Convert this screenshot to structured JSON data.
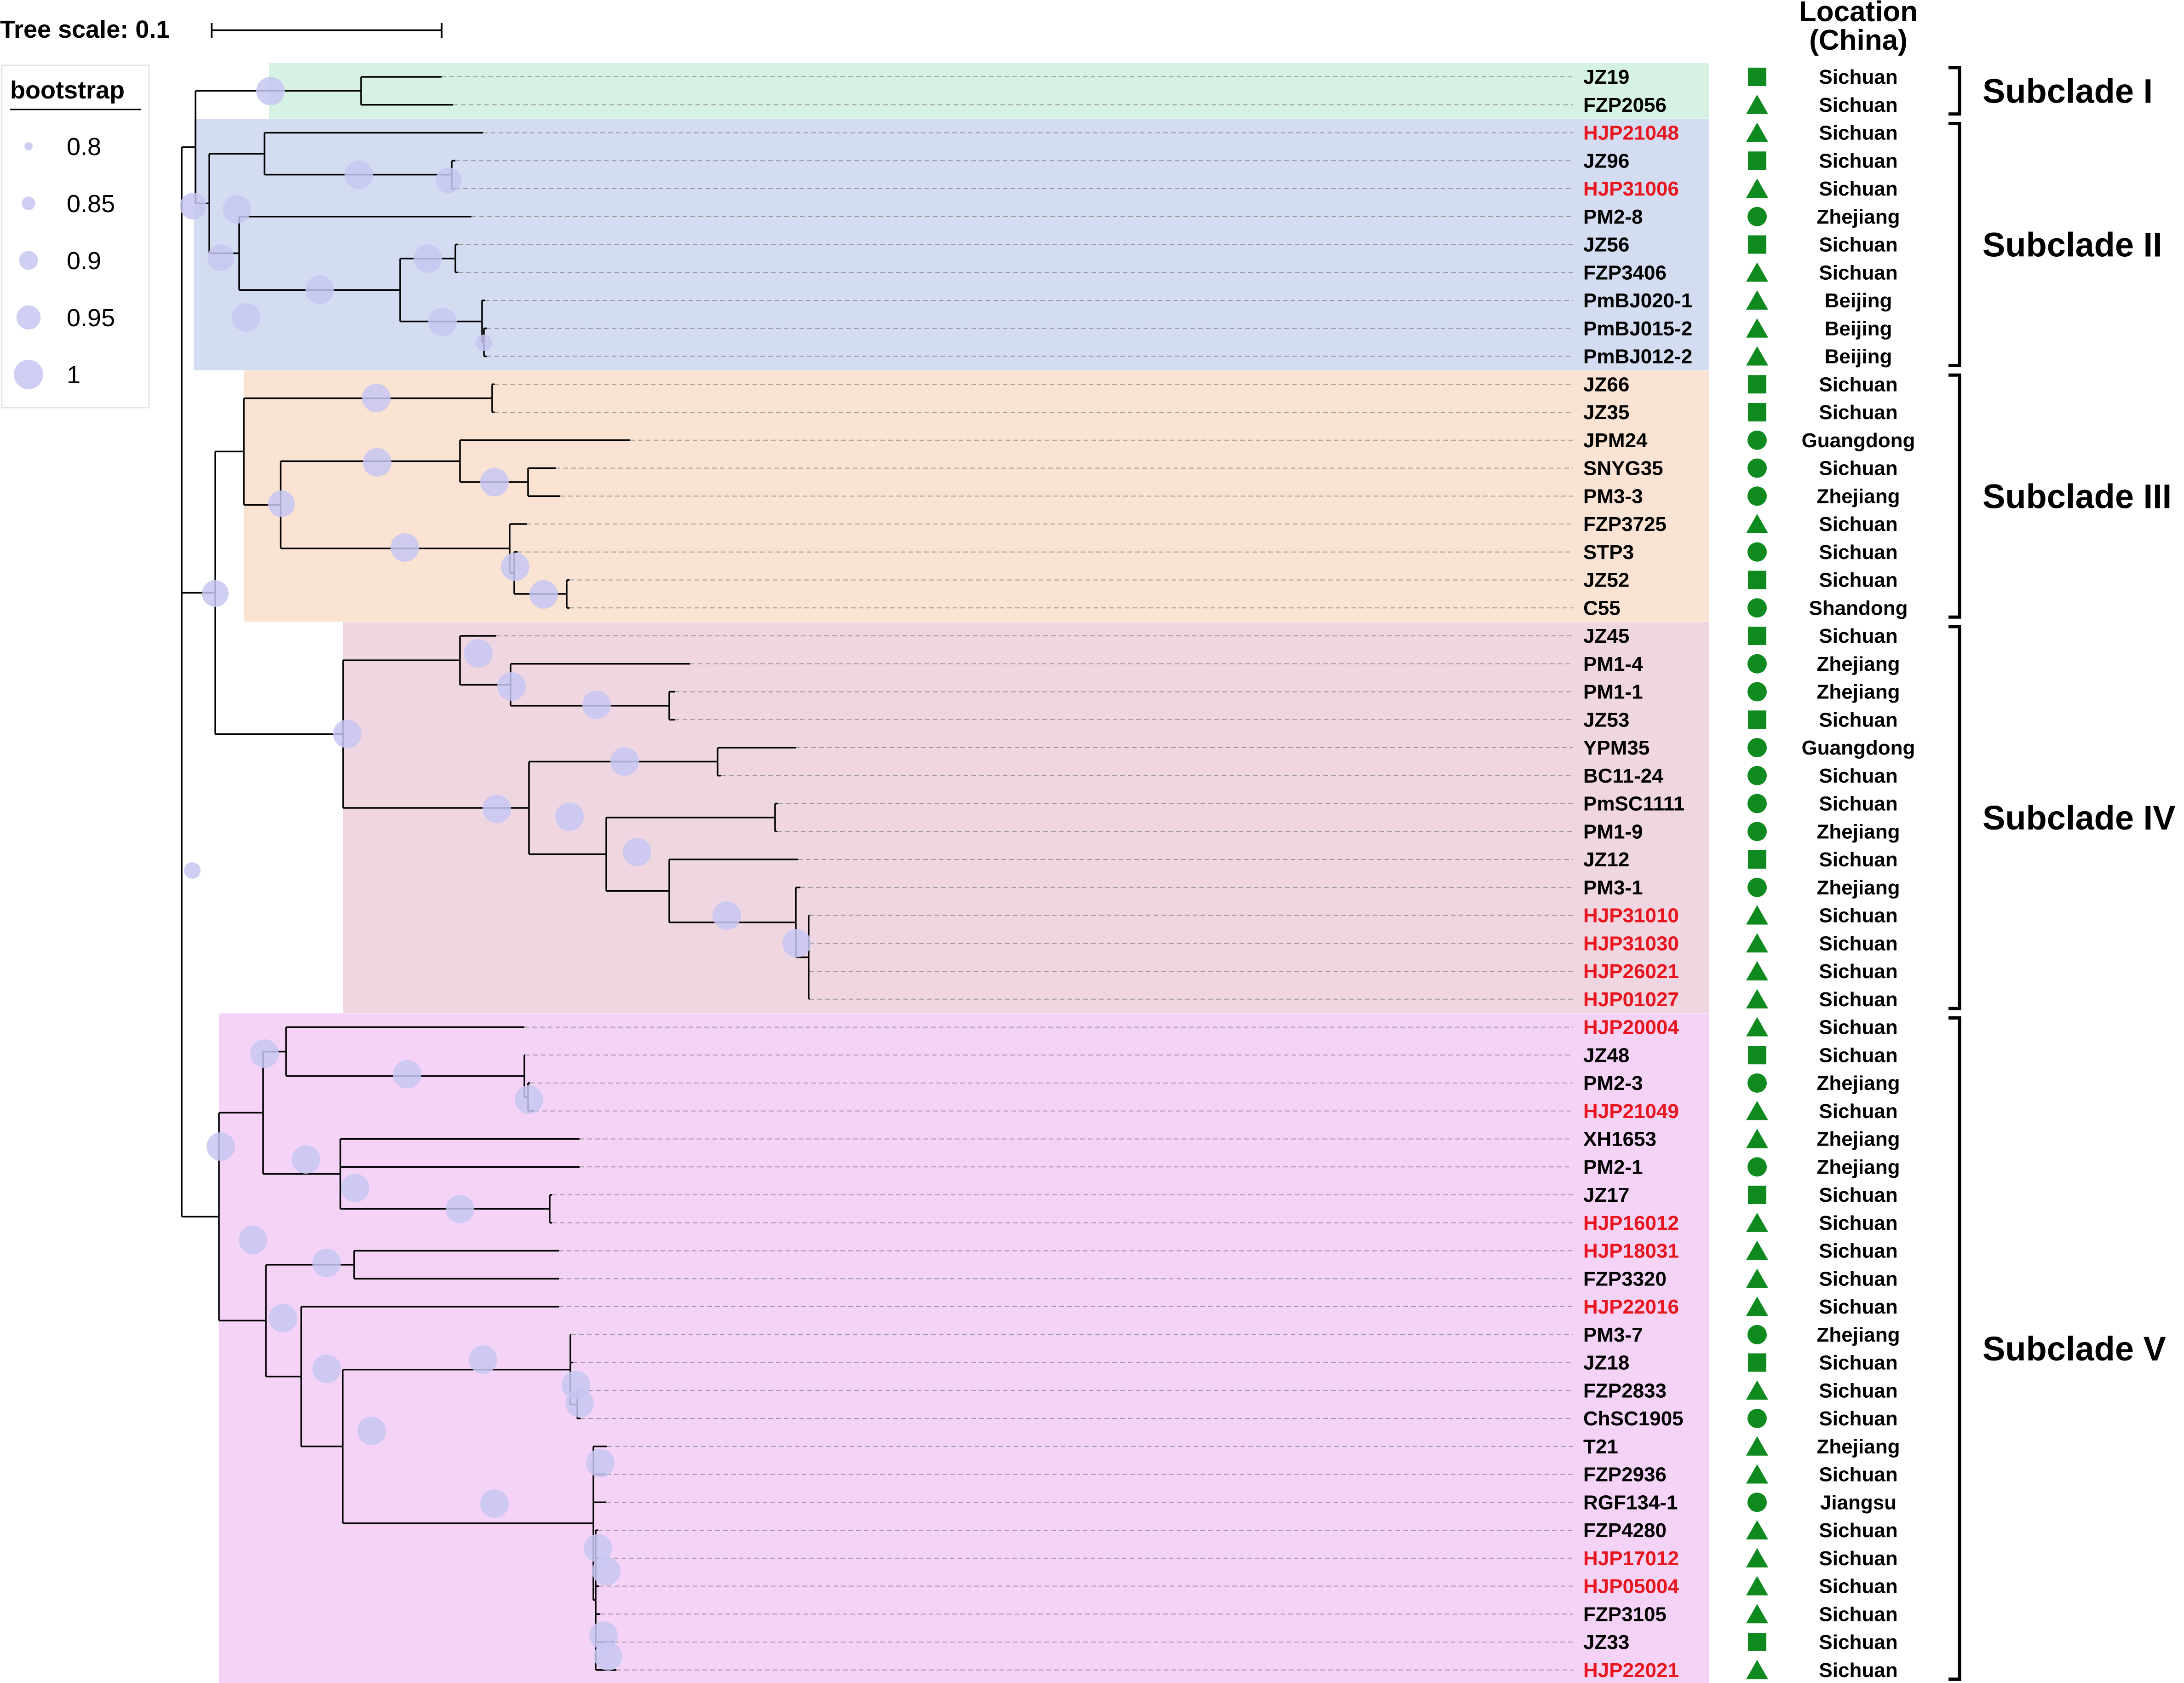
{
  "tree_scale": {
    "label": "Tree scale: 0.1"
  },
  "legend": {
    "title": "bootstrap",
    "entries": [
      {
        "label": "0.8",
        "value": 0.8
      },
      {
        "label": "0.85",
        "value": 0.85
      },
      {
        "label": "0.9",
        "value": 0.9
      },
      {
        "label": "0.95",
        "value": 0.95
      },
      {
        "label": "1",
        "value": 1.0
      }
    ]
  },
  "location_header": {
    "line1": "Location",
    "line2": "(China)"
  },
  "colors": {
    "highlight_label": "#e8141e",
    "normal_label": "#000000",
    "shape": "#0f8a1e",
    "bootstrap": "#c7c7f2",
    "subclades": [
      "#d6f2e3",
      "#d4dcf2",
      "#fbe3d4",
      "#efd6e1",
      "#f5d3f7"
    ]
  },
  "subclades": [
    {
      "label": "Subclade I",
      "from": 0,
      "to": 1
    },
    {
      "label": "Subclade II",
      "from": 2,
      "to": 10
    },
    {
      "label": "Subclade III",
      "from": 11,
      "to": 19
    },
    {
      "label": "Subclade IV",
      "from": 20,
      "to": 33
    },
    {
      "label": "Subclade V",
      "from": 34,
      "to": 57
    }
  ],
  "taxa": [
    {
      "name": "JZ19",
      "location": "Sichuan",
      "shape": "square",
      "highlight": false
    },
    {
      "name": "FZP2056",
      "location": "Sichuan",
      "shape": "triangle",
      "highlight": false
    },
    {
      "name": "HJP21048",
      "location": "Sichuan",
      "shape": "triangle",
      "highlight": true
    },
    {
      "name": "JZ96",
      "location": "Sichuan",
      "shape": "square",
      "highlight": false
    },
    {
      "name": "HJP31006",
      "location": "Sichuan",
      "shape": "triangle",
      "highlight": true
    },
    {
      "name": "PM2-8",
      "location": "Zhejiang",
      "shape": "circle",
      "highlight": false
    },
    {
      "name": "JZ56",
      "location": "Sichuan",
      "shape": "square",
      "highlight": false
    },
    {
      "name": "FZP3406",
      "location": "Sichuan",
      "shape": "triangle",
      "highlight": false
    },
    {
      "name": "PmBJ020-1",
      "location": "Beijing",
      "shape": "triangle",
      "highlight": false
    },
    {
      "name": "PmBJ015-2",
      "location": "Beijing",
      "shape": "triangle",
      "highlight": false
    },
    {
      "name": "PmBJ012-2",
      "location": "Beijing",
      "shape": "triangle",
      "highlight": false
    },
    {
      "name": "JZ66",
      "location": "Sichuan",
      "shape": "square",
      "highlight": false
    },
    {
      "name": "JZ35",
      "location": "Sichuan",
      "shape": "square",
      "highlight": false
    },
    {
      "name": "JPM24",
      "location": "Guangdong",
      "shape": "circle",
      "highlight": false
    },
    {
      "name": "SNYG35",
      "location": "Sichuan",
      "shape": "circle",
      "highlight": false
    },
    {
      "name": "PM3-3",
      "location": "Zhejiang",
      "shape": "circle",
      "highlight": false
    },
    {
      "name": "FZP3725",
      "location": "Sichuan",
      "shape": "triangle",
      "highlight": false
    },
    {
      "name": "STP3",
      "location": "Sichuan",
      "shape": "circle",
      "highlight": false
    },
    {
      "name": "JZ52",
      "location": "Sichuan",
      "shape": "square",
      "highlight": false
    },
    {
      "name": "C55",
      "location": "Shandong",
      "shape": "circle",
      "highlight": false
    },
    {
      "name": "JZ45",
      "location": "Sichuan",
      "shape": "square",
      "highlight": false
    },
    {
      "name": "PM1-4",
      "location": "Zhejiang",
      "shape": "circle",
      "highlight": false
    },
    {
      "name": "PM1-1",
      "location": "Zhejiang",
      "shape": "circle",
      "highlight": false
    },
    {
      "name": "JZ53",
      "location": "Sichuan",
      "shape": "square",
      "highlight": false
    },
    {
      "name": "YPM35",
      "location": "Guangdong",
      "shape": "circle",
      "highlight": false
    },
    {
      "name": "BC11-24",
      "location": "Sichuan",
      "shape": "circle",
      "highlight": false
    },
    {
      "name": "PmSC1111",
      "location": "Sichuan",
      "shape": "circle",
      "highlight": false
    },
    {
      "name": "PM1-9",
      "location": "Zhejiang",
      "shape": "circle",
      "highlight": false
    },
    {
      "name": "JZ12",
      "location": "Sichuan",
      "shape": "square",
      "highlight": false
    },
    {
      "name": "PM3-1",
      "location": "Zhejiang",
      "shape": "circle",
      "highlight": false
    },
    {
      "name": "HJP31010",
      "location": "Sichuan",
      "shape": "triangle",
      "highlight": true
    },
    {
      "name": "HJP31030",
      "location": "Sichuan",
      "shape": "triangle",
      "highlight": true
    },
    {
      "name": "HJP26021",
      "location": "Sichuan",
      "shape": "triangle",
      "highlight": true
    },
    {
      "name": "HJP01027",
      "location": "Sichuan",
      "shape": "triangle",
      "highlight": true
    },
    {
      "name": "HJP20004",
      "location": "Sichuan",
      "shape": "triangle",
      "highlight": true
    },
    {
      "name": "JZ48",
      "location": "Sichuan",
      "shape": "square",
      "highlight": false
    },
    {
      "name": "PM2-3",
      "location": "Zhejiang",
      "shape": "circle",
      "highlight": false
    },
    {
      "name": "HJP21049",
      "location": "Sichuan",
      "shape": "triangle",
      "highlight": true
    },
    {
      "name": "XH1653",
      "location": "Zhejiang",
      "shape": "triangle",
      "highlight": false
    },
    {
      "name": "PM2-1",
      "location": "Zhejiang",
      "shape": "circle",
      "highlight": false
    },
    {
      "name": "JZ17",
      "location": "Sichuan",
      "shape": "square",
      "highlight": false
    },
    {
      "name": "HJP16012",
      "location": "Sichuan",
      "shape": "triangle",
      "highlight": true
    },
    {
      "name": "HJP18031",
      "location": "Sichuan",
      "shape": "triangle",
      "highlight": true
    },
    {
      "name": "FZP3320",
      "location": "Sichuan",
      "shape": "triangle",
      "highlight": false
    },
    {
      "name": "HJP22016",
      "location": "Sichuan",
      "shape": "triangle",
      "highlight": true
    },
    {
      "name": "PM3-7",
      "location": "Zhejiang",
      "shape": "circle",
      "highlight": false
    },
    {
      "name": "JZ18",
      "location": "Sichuan",
      "shape": "square",
      "highlight": false
    },
    {
      "name": "FZP2833",
      "location": "Sichuan",
      "shape": "triangle",
      "highlight": false
    },
    {
      "name": "ChSC1905",
      "location": "Sichuan",
      "shape": "circle",
      "highlight": false
    },
    {
      "name": "T21",
      "location": "Zhejiang",
      "shape": "triangle",
      "highlight": false
    },
    {
      "name": "FZP2936",
      "location": "Sichuan",
      "shape": "triangle",
      "highlight": false
    },
    {
      "name": "RGF134-1",
      "location": "Jiangsu",
      "shape": "circle",
      "highlight": false
    },
    {
      "name": "FZP4280",
      "location": "Sichuan",
      "shape": "triangle",
      "highlight": false
    },
    {
      "name": "HJP17012",
      "location": "Sichuan",
      "shape": "triangle",
      "highlight": true
    },
    {
      "name": "HJP05004",
      "location": "Sichuan",
      "shape": "triangle",
      "highlight": true
    },
    {
      "name": "FZP3105",
      "location": "Sichuan",
      "shape": "triangle",
      "highlight": false
    },
    {
      "name": "JZ33",
      "location": "Sichuan",
      "shape": "square",
      "highlight": false
    },
    {
      "name": "HJP22021",
      "location": "Sichuan",
      "shape": "triangle",
      "highlight": true
    }
  ]
}
